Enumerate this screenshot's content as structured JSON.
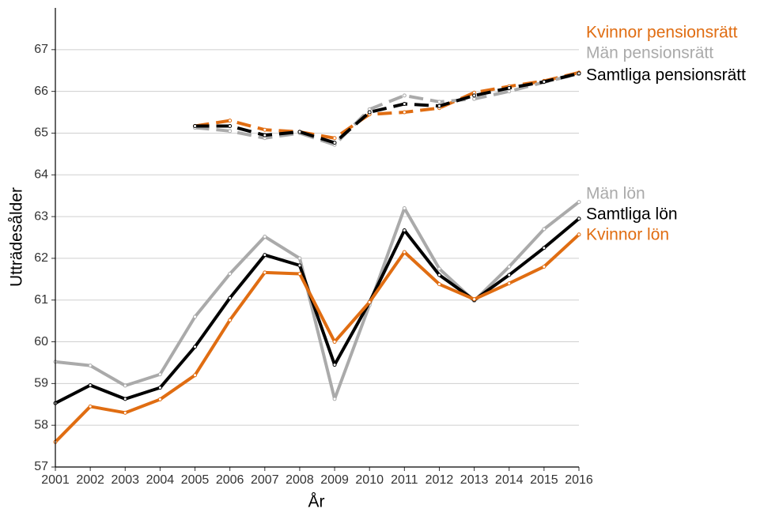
{
  "chart_data": {
    "type": "line",
    "x_label": "År",
    "y_label": "Utträdesålder",
    "x": [
      2001,
      2002,
      2003,
      2004,
      2005,
      2006,
      2007,
      2008,
      2009,
      2010,
      2011,
      2012,
      2013,
      2014,
      2015,
      2016
    ],
    "xlim": [
      2001,
      2016
    ],
    "xticks": [
      2001,
      2002,
      2003,
      2004,
      2005,
      2006,
      2007,
      2008,
      2009,
      2010,
      2011,
      2012,
      2013,
      2014,
      2015,
      2016
    ],
    "ylim": [
      57,
      68
    ],
    "yticks": [
      57,
      58,
      59,
      60,
      61,
      62,
      63,
      64,
      65,
      66,
      67
    ],
    "grid": true,
    "series": [
      {
        "name": "Kvinnor pensionsrätt",
        "color": "#e06d12",
        "dashed": true,
        "values": [
          null,
          null,
          null,
          null,
          65.17,
          65.3,
          65.08,
          65.03,
          64.88,
          65.45,
          65.5,
          65.6,
          65.97,
          66.12,
          66.25,
          66.45
        ]
      },
      {
        "name": "Män pensionsrätt",
        "color": "#aaaaaa",
        "dashed": true,
        "values": [
          null,
          null,
          null,
          null,
          65.13,
          65.05,
          64.88,
          65.0,
          64.72,
          65.57,
          65.9,
          65.75,
          65.82,
          66.0,
          66.22,
          66.42
        ]
      },
      {
        "name": "Samtliga pensionsrätt",
        "color": "#000000",
        "dashed": true,
        "values": [
          null,
          null,
          null,
          null,
          65.17,
          65.17,
          64.95,
          65.03,
          64.77,
          65.5,
          65.7,
          65.65,
          65.9,
          66.08,
          66.23,
          66.43
        ]
      },
      {
        "name": "Män lön",
        "color": "#aaaaaa",
        "dashed": false,
        "values": [
          59.52,
          59.43,
          58.95,
          59.22,
          60.6,
          61.63,
          62.52,
          62.0,
          58.63,
          60.88,
          63.2,
          61.75,
          60.98,
          61.8,
          62.7,
          63.35
        ]
      },
      {
        "name": "Samtliga lön",
        "color": "#000000",
        "dashed": false,
        "values": [
          58.53,
          58.96,
          58.63,
          58.9,
          59.88,
          61.05,
          62.08,
          61.83,
          59.45,
          60.95,
          62.67,
          61.6,
          61.0,
          61.6,
          62.25,
          62.95
        ]
      },
      {
        "name": "Kvinnor lön",
        "color": "#e06d12",
        "dashed": false,
        "values": [
          57.6,
          58.45,
          58.3,
          58.62,
          59.2,
          60.52,
          61.66,
          61.63,
          60.0,
          60.95,
          62.15,
          61.38,
          61.02,
          61.4,
          61.8,
          62.57
        ]
      }
    ]
  }
}
